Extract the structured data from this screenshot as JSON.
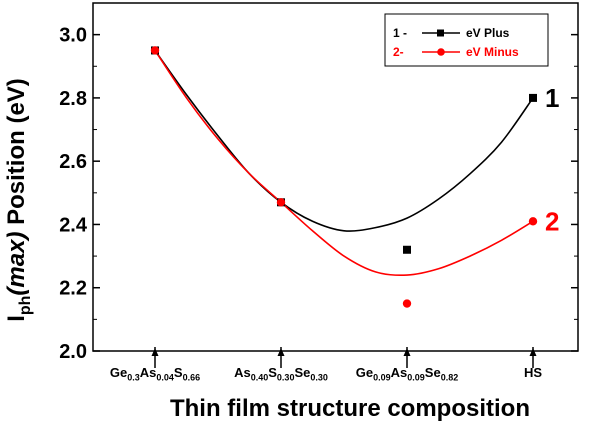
{
  "chart_data": {
    "type": "line",
    "xlabel": "Thin film structure composition",
    "ylabel": {
      "base": "I",
      "sub": "ph",
      "italic": "(max)",
      "rest": " Position (eV)"
    },
    "categories": [
      {
        "parts": [
          [
            "Ge",
            ""
          ],
          [
            "0.3",
            "sub"
          ],
          [
            "As",
            ""
          ],
          [
            "0.04",
            "sub"
          ],
          [
            "S",
            ""
          ],
          [
            "0.66",
            "sub"
          ]
        ],
        "text": "Ge0.3As0.04S0.66"
      },
      {
        "parts": [
          [
            "As",
            ""
          ],
          [
            "0.40",
            "sub"
          ],
          [
            "S",
            ""
          ],
          [
            "0.30",
            "sub"
          ],
          [
            "Se",
            ""
          ],
          [
            "0.30",
            "sub"
          ]
        ],
        "text": "As0.40S0.30Se0.30"
      },
      {
        "parts": [
          [
            "Ge",
            ""
          ],
          [
            "0.09",
            "sub"
          ],
          [
            "As",
            ""
          ],
          [
            "0.09",
            "sub"
          ],
          [
            "Se",
            ""
          ],
          [
            "0.82",
            "sub"
          ]
        ],
        "text": "Ge0.09As0.09Se0.82"
      },
      {
        "parts": [
          [
            "HS",
            ""
          ]
        ],
        "text": "HS"
      }
    ],
    "ylim": [
      2.0,
      3.1
    ],
    "yticks": [
      "2.0",
      "2.2",
      "2.4",
      "2.6",
      "2.8",
      "3.0"
    ],
    "series": [
      {
        "name": "eV Plus",
        "prefix": "1 -",
        "marker": "square",
        "color": "#000000",
        "values": [
          2.95,
          2.47,
          2.32,
          2.8
        ],
        "fit": [
          [
            0,
            2.95
          ],
          [
            0.25,
            2.81
          ],
          [
            0.5,
            2.68
          ],
          [
            0.75,
            2.56
          ],
          [
            1,
            2.47
          ],
          [
            1.25,
            2.41
          ],
          [
            1.5,
            2.38
          ],
          [
            1.75,
            2.39
          ],
          [
            2,
            2.42
          ],
          [
            2.25,
            2.48
          ],
          [
            2.5,
            2.56
          ],
          [
            2.75,
            2.66
          ],
          [
            3,
            2.8
          ]
        ],
        "end_label": "1"
      },
      {
        "name": "eV Minus",
        "prefix": "2-",
        "marker": "circle",
        "color": "#ff0000",
        "values": [
          2.95,
          2.47,
          2.15,
          2.41
        ],
        "fit": [
          [
            0,
            2.95
          ],
          [
            0.25,
            2.8
          ],
          [
            0.5,
            2.67
          ],
          [
            0.75,
            2.56
          ],
          [
            1,
            2.47
          ],
          [
            1.25,
            2.38
          ],
          [
            1.5,
            2.3
          ],
          [
            1.75,
            2.25
          ],
          [
            2,
            2.24
          ],
          [
            2.25,
            2.26
          ],
          [
            2.5,
            2.3
          ],
          [
            2.75,
            2.35
          ],
          [
            3,
            2.41
          ]
        ],
        "end_label": "2"
      }
    ],
    "legend_position": "top-right",
    "grid": false
  }
}
